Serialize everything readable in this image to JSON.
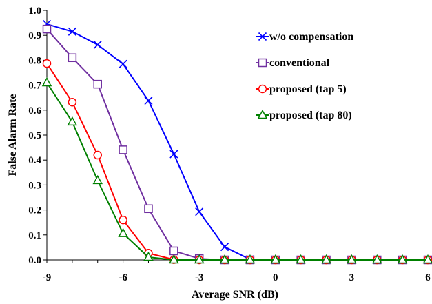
{
  "chart_data": {
    "type": "line",
    "title": "",
    "xlabel": "Average SNR (dB)",
    "ylabel": "False Alarm Rate",
    "xlim": [
      -9,
      6
    ],
    "ylim": [
      0,
      1.0
    ],
    "xticks": [
      -9,
      -6,
      -3,
      0,
      3,
      6
    ],
    "xtick_labels": [
      "-9",
      "-6",
      "-3",
      "0",
      "3",
      "6"
    ],
    "yticks": [
      0,
      0.1,
      0.2,
      0.3,
      0.4,
      0.5,
      0.6,
      0.7,
      0.8,
      0.9,
      1.0
    ],
    "ytick_labels": [
      "0.0",
      "0.1",
      "0.2",
      "0.3",
      "0.4",
      "0.5",
      "0.6",
      "0.7",
      "0.8",
      "0.9",
      "1.0"
    ],
    "grid": false,
    "legend_position": "top-right",
    "x": [
      -9,
      -8,
      -7,
      -6,
      -5,
      -4,
      -3,
      -2,
      -1,
      0,
      1,
      2,
      3,
      4,
      5,
      6
    ],
    "series": [
      {
        "name": "w/o compensation",
        "color": "#0000ff",
        "marker": "x",
        "values": [
          0.945,
          0.915,
          0.862,
          0.785,
          0.638,
          0.424,
          0.193,
          0.052,
          0.002,
          0,
          0,
          0,
          0,
          0,
          0,
          0
        ]
      },
      {
        "name": "conventional",
        "color": "#7030a0",
        "marker": "square",
        "values": [
          0.925,
          0.81,
          0.704,
          0.441,
          0.205,
          0.036,
          0.005,
          0,
          0,
          0,
          0,
          0,
          0,
          0,
          0,
          0
        ]
      },
      {
        "name": "proposed (tap 5)",
        "color": "#ff0000",
        "marker": "circle",
        "values": [
          0.787,
          0.632,
          0.42,
          0.16,
          0.027,
          0.001,
          0,
          0,
          0,
          0,
          0,
          0,
          0,
          0,
          0,
          0
        ]
      },
      {
        "name": "proposed (tap 80)",
        "color": "#008000",
        "marker": "triangle",
        "values": [
          0.71,
          0.553,
          0.318,
          0.106,
          0.011,
          0,
          0,
          0,
          0,
          0,
          0,
          0,
          0,
          0,
          0,
          0
        ]
      }
    ]
  }
}
